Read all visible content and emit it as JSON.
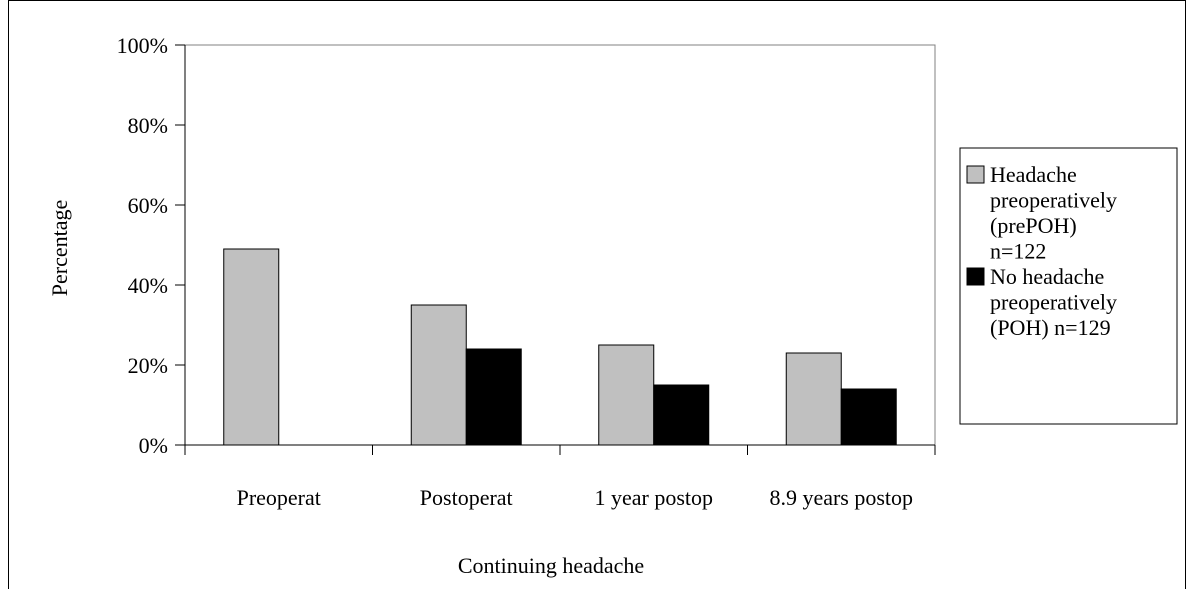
{
  "chart_data": {
    "type": "bar",
    "x_label": "Continuing headache",
    "y_label": "Percentage",
    "categories": [
      "Preoperat",
      "Postoperat",
      "1 year postop",
      "8.9 years postop"
    ],
    "series": [
      {
        "name": "Headache preoperatively (prePOH) n=122",
        "color": "#c0c0c0",
        "values": [
          49,
          35,
          25,
          23
        ]
      },
      {
        "name": "No headache preoperatively (POH) n=129",
        "color": "#000000",
        "values": [
          null,
          24,
          15,
          14
        ]
      }
    ],
    "ylim": [
      0,
      100
    ],
    "yticks": [
      {
        "value": 0,
        "label": "0%"
      },
      {
        "value": 20,
        "label": "20%"
      },
      {
        "value": 40,
        "label": "40%"
      },
      {
        "value": 60,
        "label": "60%"
      },
      {
        "value": 80,
        "label": "80%"
      },
      {
        "value": 100,
        "label": "100%"
      }
    ],
    "legend": "right"
  }
}
